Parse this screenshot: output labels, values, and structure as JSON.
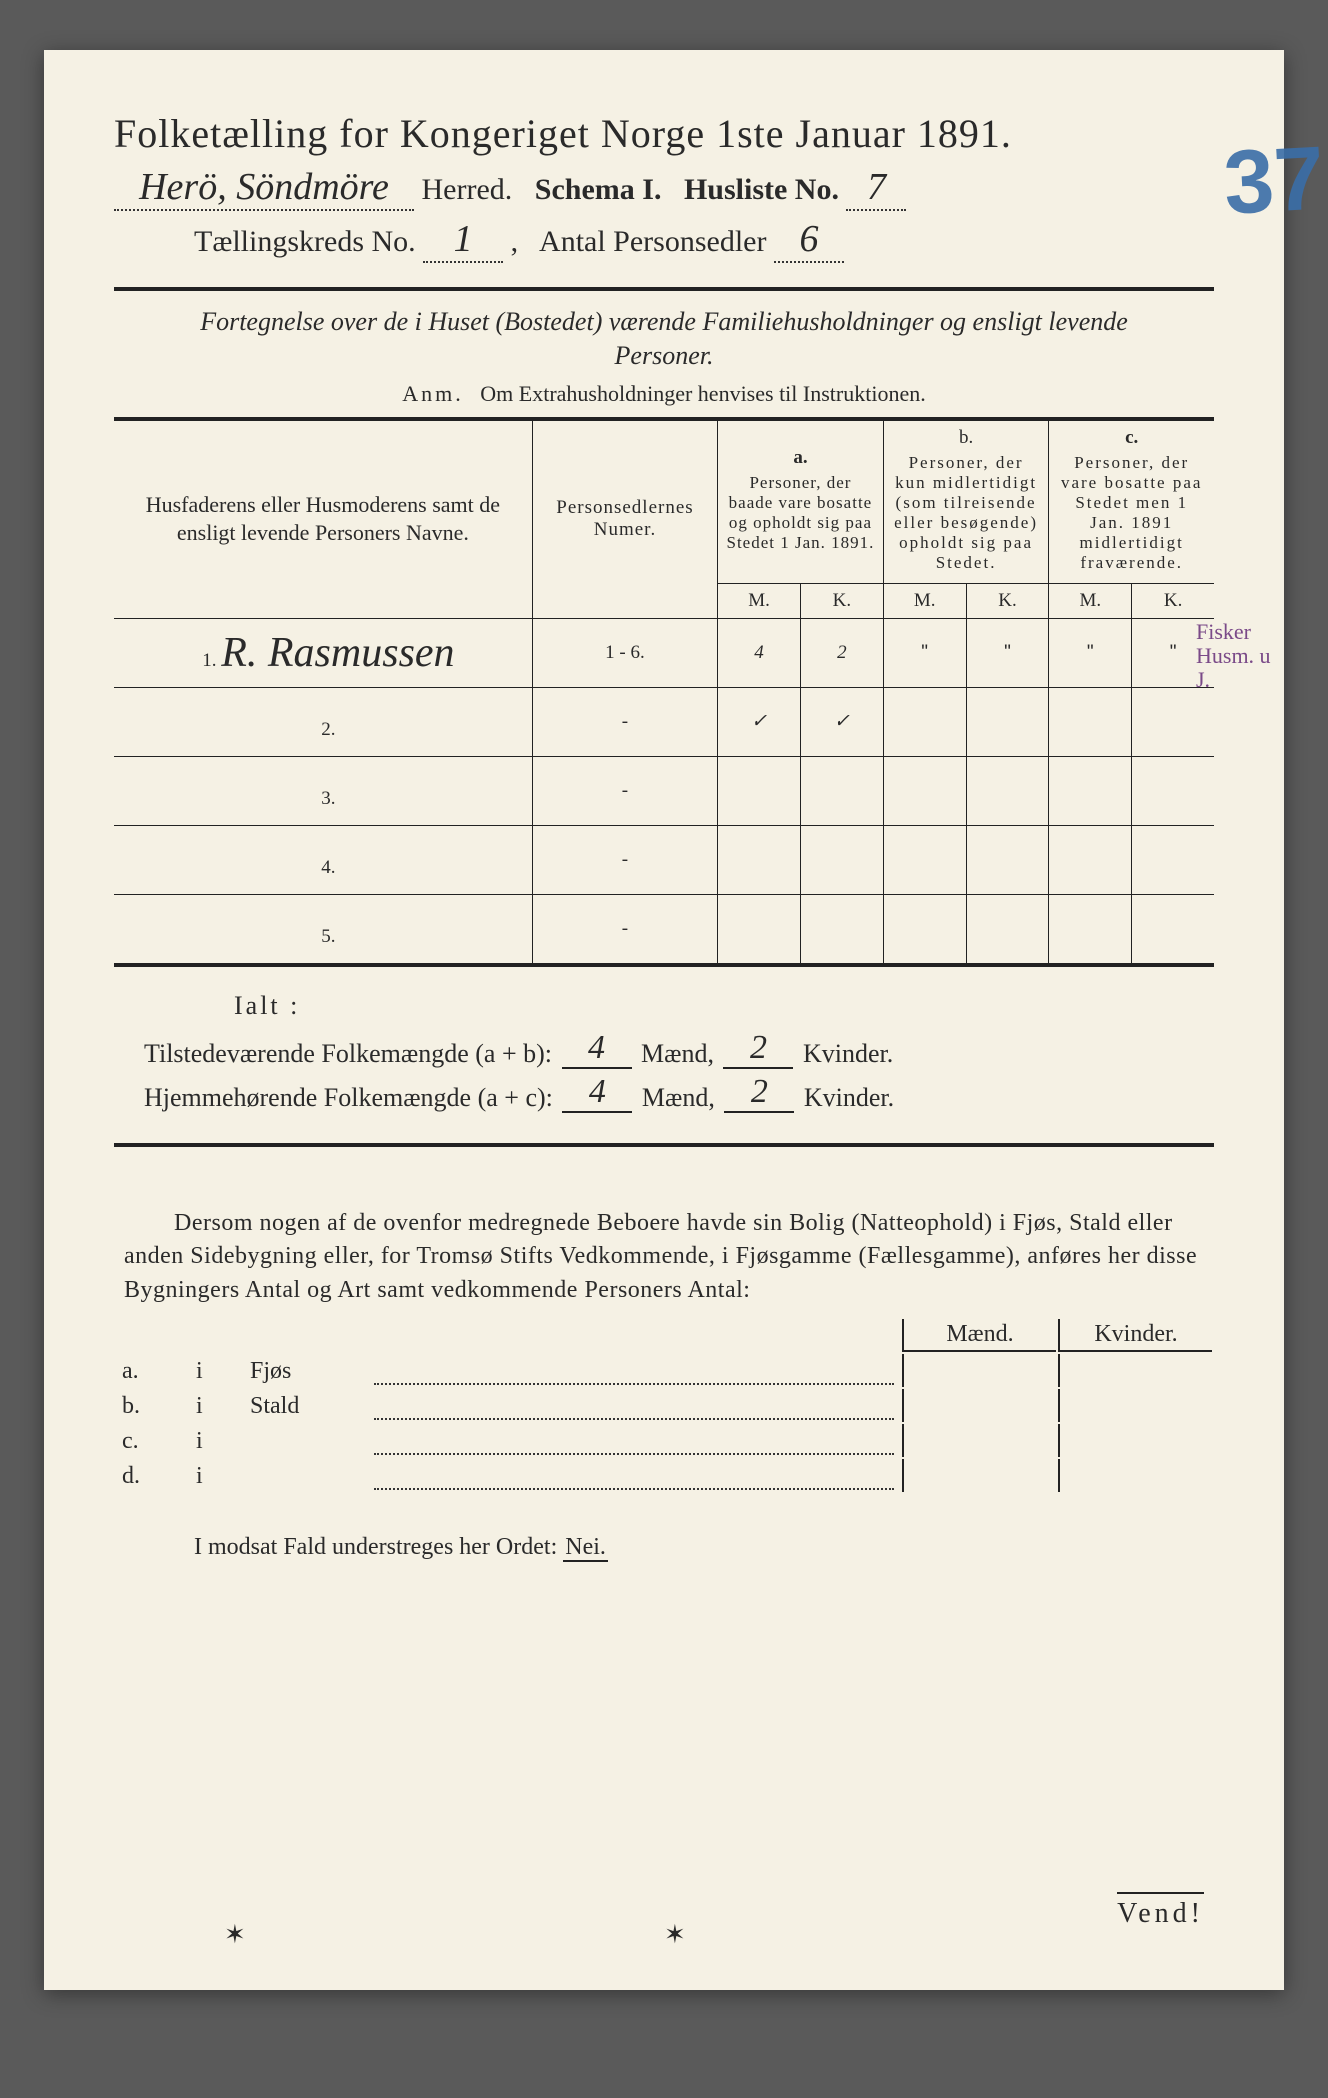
{
  "title": "Folketælling for Kongeriget Norge 1ste Januar 1891.",
  "header": {
    "herred_value": "Herö, Söndmöre",
    "herred_label": "Herred.",
    "schema_label": "Schema I.",
    "husliste_label": "Husliste No.",
    "husliste_value": "7",
    "kreds_label": "Tællingskreds No.",
    "kreds_value": "1",
    "personsedler_label": "Antal Personsedler",
    "personsedler_value": "6"
  },
  "stamp": "37",
  "subtitle": "Fortegnelse over de i Huset (Bostedet) værende Familiehusholdninger og ensligt levende Personer.",
  "anm_label": "Anm.",
  "anm_text": "Om Extrahusholdninger henvises til Instruktionen.",
  "columns": {
    "names": "Husfaderens eller Husmoderens samt de ensligt levende Personers Navne.",
    "nums": "Personsedlernes Numer.",
    "a_label": "a.",
    "a_text": "Personer, der baade vare bosatte og opholdt sig paa Stedet 1 Jan. 1891.",
    "b_label": "b.",
    "b_text": "Personer, der kun midlertidigt (som tilreisende eller besøgende) opholdt sig paa Stedet.",
    "c_label": "c.",
    "c_text": "Personer, der vare bosatte paa Stedet men 1 Jan. 1891 midlertidigt fraværende.",
    "M": "M.",
    "K": "K."
  },
  "rows": [
    {
      "n": "1.",
      "name": "R. Rasmussen",
      "nums": "1 - 6.",
      "aM": "4",
      "aK": "2",
      "bM": "\"",
      "bK": "\"",
      "cM": "\"",
      "cK": "\""
    },
    {
      "n": "2.",
      "name": "",
      "nums": "-",
      "aM": "✓",
      "aK": "✓",
      "bM": "",
      "bK": "",
      "cM": "",
      "cK": ""
    },
    {
      "n": "3.",
      "name": "",
      "nums": "-",
      "aM": "",
      "aK": "",
      "bM": "",
      "bK": "",
      "cM": "",
      "cK": ""
    },
    {
      "n": "4.",
      "name": "",
      "nums": "-",
      "aM": "",
      "aK": "",
      "bM": "",
      "bK": "",
      "cM": "",
      "cK": ""
    },
    {
      "n": "5.",
      "name": "",
      "nums": "-",
      "aM": "",
      "aK": "",
      "bM": "",
      "bK": "",
      "cM": "",
      "cK": ""
    }
  ],
  "margin_note": "Fisker Husm. u J.",
  "ialt": "Ialt :",
  "sums": {
    "line1_label": "Tilstedeværende Folkemængde (a + b):",
    "line2_label": "Hjemmehørende Folkemængde (a + c):",
    "maend": "Mænd,",
    "kvinder": "Kvinder.",
    "l1_m": "4",
    "l1_k": "2",
    "l2_m": "4",
    "l2_k": "2"
  },
  "para": "Dersom nogen af de ovenfor medregnede Beboere havde sin Bolig (Natteophold) i Fjøs, Stald eller anden Sidebygning eller, for Tromsø Stifts Vedkommende, i Fjøsgamme (Fællesgamme), anføres her disse Bygningers Antal og Art samt vedkommende Personers Antal:",
  "buildings": {
    "maend": "Mænd.",
    "kvinder": "Kvinder.",
    "rows": [
      {
        "k": "a.",
        "i": "i",
        "label": "Fjøs"
      },
      {
        "k": "b.",
        "i": "i",
        "label": "Stald"
      },
      {
        "k": "c.",
        "i": "i",
        "label": ""
      },
      {
        "k": "d.",
        "i": "i",
        "label": ""
      }
    ]
  },
  "nei_line_a": "I modsat Fald understreges her Ordet:",
  "nei_word": "Nei.",
  "vend": "Vend!"
}
